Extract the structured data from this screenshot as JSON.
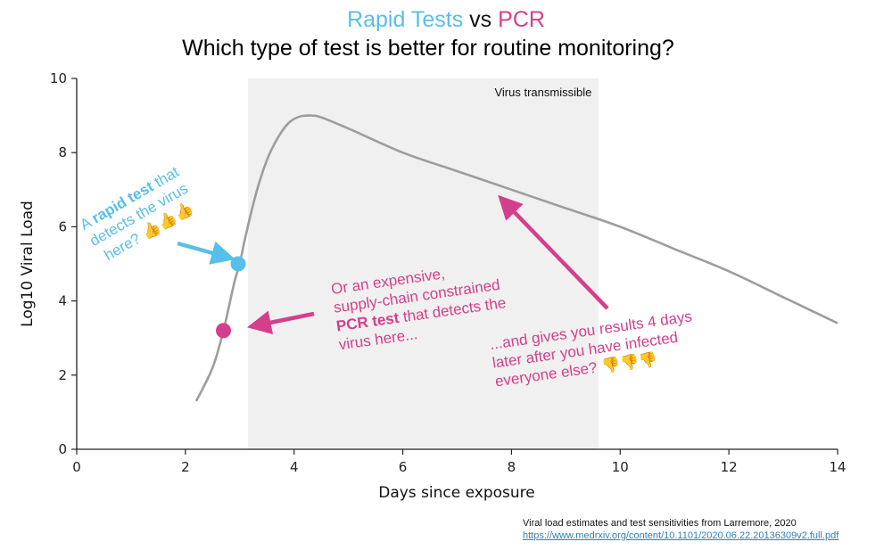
{
  "title": {
    "part1": "Rapid Tests",
    "part2": " vs ",
    "part3": "PCR",
    "subtitle": "Which type of test is better for routine monitoring?"
  },
  "colors": {
    "rapid": "#57bfe9",
    "pcr": "#d43f8b",
    "curve": "#9d9d9d",
    "shade": "#f0f0f0"
  },
  "chart_data": {
    "type": "line",
    "xlabel": "Days since exposure",
    "ylabel": "Log10 Viral Load",
    "xlim": [
      0,
      14
    ],
    "ylim": [
      0,
      10
    ],
    "xticks": [
      0,
      2,
      4,
      6,
      8,
      10,
      12,
      14
    ],
    "yticks": [
      0,
      2,
      4,
      6,
      8,
      10
    ],
    "grid": false,
    "series": [
      {
        "name": "Viral load",
        "x": [
          2.2,
          2.5,
          2.7,
          2.9,
          3.0,
          3.1,
          3.3,
          3.5,
          3.7,
          3.9,
          4.1,
          4.3,
          4.5,
          5.0,
          6.0,
          7.0,
          8.0,
          9.0,
          10.0,
          11.0,
          12.0,
          13.0,
          14.0
        ],
        "y": [
          1.3,
          2.2,
          3.2,
          4.5,
          5.0,
          5.7,
          6.9,
          7.8,
          8.4,
          8.8,
          8.97,
          9.0,
          8.95,
          8.65,
          8.0,
          7.5,
          7.0,
          6.5,
          6.0,
          5.4,
          4.8,
          4.1,
          3.4
        ]
      }
    ],
    "shaded_region": {
      "x_start": 3.15,
      "x_end": 9.6,
      "label": "Virus transmissible"
    },
    "points": [
      {
        "name": "Rapid test detection",
        "x": 2.97,
        "y": 5.0
      },
      {
        "name": "PCR test detection",
        "x": 2.7,
        "y": 3.2
      }
    ]
  },
  "annotations": {
    "rapid": {
      "line1_pre": "A ",
      "line1_bold": "rapid test",
      "line1_post": " that",
      "line2": "detects the virus",
      "line3": "here?",
      "emoji": "👍👍👍"
    },
    "pcr": {
      "line1": "Or an expensive,",
      "line2": "supply-chain constrained",
      "line3_bold": "PCR test",
      "line3_post": " that detects the",
      "line4": "virus here..."
    },
    "results": {
      "line1": "...and gives you results 4 days",
      "line2": "later after you have infected",
      "line3": "everyone else?",
      "emoji": "👎👎👎"
    }
  },
  "credit": {
    "line1": "Viral load estimates and test sensitivities from Larremore, 2020",
    "link": "https://www.medrxiv.org/content/10.1101/2020.06.22.20136309v2.full.pdf"
  }
}
